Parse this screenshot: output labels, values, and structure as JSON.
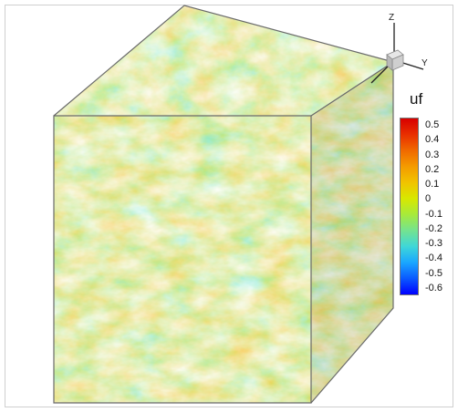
{
  "figure": {
    "variable": "uf",
    "colormap": [
      "#0000ff",
      "#0a5aff",
      "#1aa7ff",
      "#3fd7d8",
      "#74e38f",
      "#a7ea3b",
      "#d8e800",
      "#f1c300",
      "#f49b00",
      "#f06900",
      "#e92f00",
      "#d80000"
    ]
  },
  "legend": {
    "title": "uf",
    "ticks": [
      "0.5",
      "0.4",
      "0.3",
      "0.2",
      "0.1",
      "0",
      "-0.1",
      "-0.2",
      "-0.3",
      "-0.4",
      "-0.5",
      "-0.6"
    ]
  },
  "axes": {
    "x_label": "",
    "y_label": "Y",
    "z_label": "Z"
  }
}
